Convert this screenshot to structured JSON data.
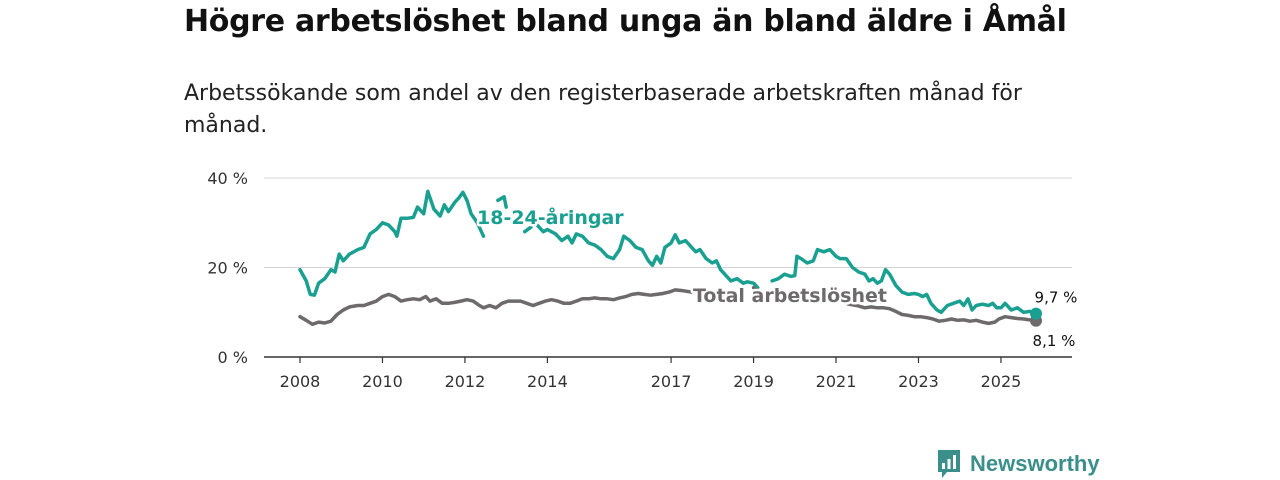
{
  "header": {
    "title": "Högre arbetslöshet bland unga än bland äldre i Åmål",
    "subtitle": "Arbetssökande som andel av den registerbaserade arbetskraften månad för månad."
  },
  "brand": {
    "name": "Newsworthy",
    "color": "#3a8f8a"
  },
  "chart_data": {
    "type": "line",
    "title": "",
    "xlabel": "",
    "ylabel": "",
    "xlim": [
      2008.0,
      2025.85
    ],
    "ylim": [
      0,
      40
    ],
    "x_ticks": [
      {
        "value": 2008,
        "label": "2008"
      },
      {
        "value": 2010,
        "label": "2010"
      },
      {
        "value": 2012,
        "label": "2012"
      },
      {
        "value": 2014,
        "label": "2014"
      },
      {
        "value": 2017,
        "label": "2017"
      },
      {
        "value": 2019,
        "label": "2019"
      },
      {
        "value": 2021,
        "label": "2021"
      },
      {
        "value": 2023,
        "label": "2023"
      },
      {
        "value": 2025,
        "label": "2025"
      }
    ],
    "y_ticks": [
      {
        "value": 0,
        "label": "0 %"
      },
      {
        "value": 20,
        "label": "20 %"
      },
      {
        "value": 40,
        "label": "40 %"
      }
    ],
    "grid": true,
    "series": [
      {
        "name": "18-24-åringar",
        "color": "#1aa091",
        "end_label": "9,7 %",
        "points": [
          [
            2008.0,
            19.5
          ],
          [
            2008.15,
            17.0
          ],
          [
            2008.25,
            14.0
          ],
          [
            2008.35,
            13.8
          ],
          [
            2008.45,
            16.5
          ],
          [
            2008.6,
            17.5
          ],
          [
            2008.75,
            19.5
          ],
          [
            2008.85,
            19.0
          ],
          [
            2008.95,
            23.0
          ],
          [
            2009.05,
            21.5
          ],
          [
            2009.2,
            23.0
          ],
          [
            2009.4,
            24.0
          ],
          [
            2009.55,
            24.5
          ],
          [
            2009.7,
            27.5
          ],
          [
            2009.85,
            28.5
          ],
          [
            2010.0,
            30.0
          ],
          [
            2010.15,
            29.5
          ],
          [
            2010.3,
            28.0
          ],
          [
            2010.35,
            27.0
          ],
          [
            2010.45,
            31.0
          ],
          [
            2010.6,
            31.0
          ],
          [
            2010.75,
            31.2
          ],
          [
            2010.85,
            33.5
          ],
          [
            2011.0,
            32.0
          ],
          [
            2011.1,
            37.0
          ],
          [
            2011.25,
            33.0
          ],
          [
            2011.4,
            31.5
          ],
          [
            2011.5,
            34.0
          ],
          [
            2011.6,
            32.5
          ],
          [
            2011.75,
            34.5
          ],
          [
            2011.85,
            35.5
          ],
          [
            2011.95,
            36.8
          ],
          [
            2012.05,
            35.0
          ],
          [
            2012.15,
            32.0
          ],
          [
            2012.3,
            30.0
          ],
          [
            2012.4,
            28.0
          ],
          [
            2012.45,
            27.0
          ],
          null,
          [
            2012.8,
            35.0
          ],
          [
            2012.95,
            35.8
          ],
          [
            2013.0,
            33.5
          ],
          null,
          [
            2013.45,
            28.0
          ],
          [
            2013.6,
            29.0
          ],
          null,
          [
            2013.75,
            29.5
          ],
          [
            2013.9,
            28.0
          ],
          [
            2014.0,
            28.5
          ],
          [
            2014.2,
            27.5
          ],
          [
            2014.35,
            26.0
          ],
          [
            2014.5,
            27.0
          ],
          [
            2014.6,
            25.5
          ],
          [
            2014.7,
            27.5
          ],
          [
            2014.85,
            27.0
          ],
          [
            2015.0,
            25.5
          ],
          [
            2015.15,
            25.0
          ],
          [
            2015.3,
            24.0
          ],
          [
            2015.45,
            22.5
          ],
          [
            2015.6,
            22.0
          ],
          [
            2015.75,
            24.0
          ],
          [
            2015.85,
            27.0
          ],
          [
            2016.0,
            26.0
          ],
          [
            2016.15,
            24.5
          ],
          [
            2016.3,
            24.0
          ],
          [
            2016.45,
            21.5
          ],
          [
            2016.55,
            20.5
          ],
          [
            2016.65,
            22.5
          ],
          [
            2016.75,
            21.0
          ],
          [
            2016.85,
            24.5
          ],
          [
            2017.0,
            25.5
          ],
          [
            2017.1,
            27.3
          ],
          [
            2017.2,
            25.5
          ],
          [
            2017.35,
            26.0
          ],
          [
            2017.5,
            24.5
          ],
          [
            2017.6,
            23.5
          ],
          [
            2017.7,
            24.0
          ],
          [
            2017.85,
            22.0
          ],
          [
            2018.0,
            21.0
          ],
          [
            2018.1,
            21.5
          ],
          [
            2018.2,
            19.5
          ],
          [
            2018.35,
            18.0
          ],
          [
            2018.45,
            17.0
          ],
          [
            2018.6,
            17.5
          ],
          [
            2018.75,
            16.5
          ],
          [
            2018.85,
            16.8
          ],
          [
            2019.0,
            16.5
          ],
          [
            2019.1,
            15.5
          ],
          null,
          [
            2019.45,
            17.0
          ],
          [
            2019.6,
            17.5
          ],
          [
            2019.75,
            18.5
          ],
          [
            2019.9,
            18.0
          ],
          [
            2020.0,
            18.2
          ],
          [
            2020.05,
            22.5
          ],
          [
            2020.15,
            22.0
          ],
          [
            2020.3,
            21.0
          ],
          [
            2020.45,
            21.5
          ],
          [
            2020.55,
            24.0
          ],
          [
            2020.7,
            23.5
          ],
          [
            2020.85,
            24.0
          ],
          [
            2021.0,
            22.5
          ],
          [
            2021.1,
            22.0
          ],
          [
            2021.25,
            22.0
          ],
          [
            2021.4,
            20.0
          ],
          [
            2021.55,
            19.0
          ],
          [
            2021.7,
            18.5
          ],
          [
            2021.8,
            17.0
          ],
          [
            2021.9,
            17.5
          ],
          [
            2022.0,
            16.5
          ],
          [
            2022.1,
            17.0
          ],
          [
            2022.2,
            19.5
          ],
          [
            2022.3,
            18.5
          ],
          [
            2022.45,
            16.0
          ],
          [
            2022.6,
            14.5
          ],
          [
            2022.75,
            14.0
          ],
          [
            2022.9,
            14.2
          ],
          [
            2023.0,
            14.0
          ],
          [
            2023.1,
            13.5
          ],
          [
            2023.2,
            14.0
          ],
          [
            2023.3,
            12.0
          ],
          [
            2023.45,
            10.5
          ],
          [
            2023.55,
            10.0
          ],
          [
            2023.7,
            11.5
          ],
          [
            2023.85,
            12.0
          ],
          [
            2024.0,
            12.5
          ],
          [
            2024.1,
            11.5
          ],
          [
            2024.2,
            13.0
          ],
          [
            2024.3,
            10.5
          ],
          [
            2024.4,
            11.5
          ],
          [
            2024.55,
            11.8
          ],
          [
            2024.7,
            11.5
          ],
          [
            2024.8,
            12.0
          ],
          [
            2024.9,
            11.0
          ],
          [
            2025.0,
            11.0
          ],
          [
            2025.1,
            12.0
          ],
          [
            2025.25,
            10.5
          ],
          [
            2025.4,
            11.0
          ],
          [
            2025.55,
            10.0
          ],
          [
            2025.7,
            10.2
          ],
          [
            2025.85,
            9.7
          ]
        ]
      },
      {
        "name": "Total arbetslöshet",
        "color": "#6e6a6c",
        "end_label": "8,1 %",
        "points": [
          [
            2008.0,
            9.0
          ],
          [
            2008.15,
            8.2
          ],
          [
            2008.3,
            7.3
          ],
          [
            2008.45,
            7.8
          ],
          [
            2008.6,
            7.6
          ],
          [
            2008.75,
            8.0
          ],
          [
            2008.9,
            9.5
          ],
          [
            2009.05,
            10.5
          ],
          [
            2009.2,
            11.2
          ],
          [
            2009.4,
            11.5
          ],
          [
            2009.55,
            11.5
          ],
          [
            2009.7,
            12.0
          ],
          [
            2009.85,
            12.5
          ],
          [
            2010.0,
            13.5
          ],
          [
            2010.15,
            14.0
          ],
          [
            2010.3,
            13.5
          ],
          [
            2010.45,
            12.5
          ],
          [
            2010.6,
            12.8
          ],
          [
            2010.75,
            13.0
          ],
          [
            2010.9,
            12.8
          ],
          [
            2011.05,
            13.5
          ],
          [
            2011.15,
            12.5
          ],
          [
            2011.3,
            13.0
          ],
          [
            2011.45,
            12.0
          ],
          [
            2011.6,
            12.0
          ],
          [
            2011.75,
            12.2
          ],
          [
            2011.9,
            12.5
          ],
          [
            2012.05,
            12.8
          ],
          [
            2012.2,
            12.5
          ],
          [
            2012.35,
            11.5
          ],
          [
            2012.45,
            11.0
          ],
          [
            2012.6,
            11.5
          ],
          [
            2012.75,
            11.0
          ],
          [
            2012.9,
            12.0
          ],
          [
            2013.05,
            12.5
          ],
          [
            2013.2,
            12.5
          ],
          [
            2013.35,
            12.5
          ],
          [
            2013.5,
            12.0
          ],
          [
            2013.65,
            11.5
          ],
          [
            2013.8,
            12.0
          ],
          [
            2013.95,
            12.5
          ],
          [
            2014.1,
            12.8
          ],
          [
            2014.25,
            12.5
          ],
          [
            2014.4,
            12.0
          ],
          [
            2014.55,
            12.0
          ],
          [
            2014.7,
            12.5
          ],
          [
            2014.85,
            13.0
          ],
          [
            2015.0,
            13.0
          ],
          [
            2015.15,
            13.2
          ],
          [
            2015.3,
            13.0
          ],
          [
            2015.45,
            13.0
          ],
          [
            2015.6,
            12.8
          ],
          [
            2015.75,
            13.2
          ],
          [
            2015.9,
            13.5
          ],
          [
            2016.05,
            14.0
          ],
          [
            2016.2,
            14.2
          ],
          [
            2016.35,
            14.0
          ],
          [
            2016.5,
            13.8
          ],
          [
            2016.65,
            14.0
          ],
          [
            2016.8,
            14.2
          ],
          [
            2016.95,
            14.5
          ],
          [
            2017.1,
            15.0
          ],
          [
            2017.3,
            14.8
          ],
          [
            2017.5,
            14.5
          ],
          null,
          [
            2019.0,
            15.5
          ],
          [
            2019.05,
            15.0
          ],
          null,
          [
            2021.3,
            11.8
          ],
          [
            2021.5,
            11.5
          ],
          [
            2021.7,
            11.0
          ],
          [
            2021.85,
            11.2
          ],
          [
            2022.0,
            11.0
          ],
          [
            2022.15,
            11.0
          ],
          [
            2022.3,
            10.8
          ],
          [
            2022.45,
            10.2
          ],
          [
            2022.6,
            9.5
          ],
          [
            2022.75,
            9.3
          ],
          [
            2022.9,
            9.0
          ],
          [
            2023.05,
            9.0
          ],
          [
            2023.2,
            8.8
          ],
          [
            2023.35,
            8.5
          ],
          [
            2023.5,
            8.0
          ],
          [
            2023.65,
            8.2
          ],
          [
            2023.8,
            8.5
          ],
          [
            2023.95,
            8.2
          ],
          [
            2024.1,
            8.3
          ],
          [
            2024.25,
            8.0
          ],
          [
            2024.4,
            8.2
          ],
          [
            2024.55,
            7.8
          ],
          [
            2024.7,
            7.5
          ],
          [
            2024.85,
            7.8
          ],
          [
            2024.95,
            8.5
          ],
          [
            2025.1,
            9.0
          ],
          [
            2025.25,
            8.8
          ],
          [
            2025.4,
            8.6
          ],
          [
            2025.55,
            8.5
          ],
          [
            2025.7,
            8.3
          ],
          [
            2025.85,
            8.1
          ]
        ]
      }
    ]
  }
}
